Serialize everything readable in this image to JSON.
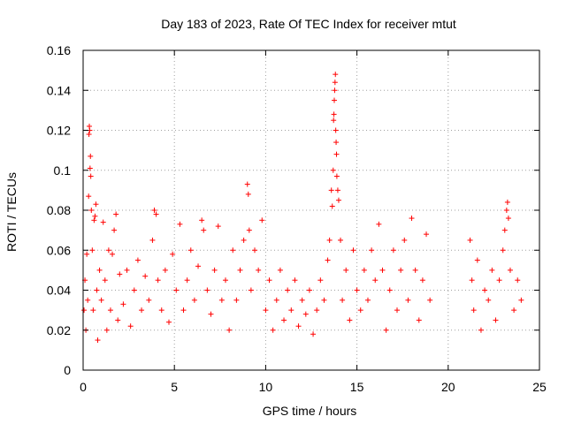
{
  "chart_data": {
    "type": "scatter",
    "title": "Day 183 of 2023, Rate Of TEC Index for receiver mtut",
    "xlabel": "GPS time / hours",
    "ylabel": "ROTI / TECUs",
    "xlim": [
      0,
      25
    ],
    "ylim": [
      0,
      0.16
    ],
    "x_ticks": [
      0,
      5,
      10,
      15,
      20,
      25
    ],
    "x_tick_labels": [
      "0",
      "5",
      "10",
      "15",
      "20",
      "25"
    ],
    "y_ticks": [
      0,
      0.02,
      0.04,
      0.06,
      0.08,
      0.1,
      0.12,
      0.14,
      0.16
    ],
    "y_tick_labels": [
      "0",
      "0.02",
      "0.04",
      "0.06",
      "0.08",
      "0.1",
      "0.12",
      "0.14",
      "0.16"
    ],
    "grid": true,
    "marker": "plus",
    "color": "#ff0000",
    "series": [
      {
        "name": "",
        "points": [
          [
            0.05,
            0.03
          ],
          [
            0.1,
            0.045
          ],
          [
            0.15,
            0.02
          ],
          [
            0.2,
            0.058
          ],
          [
            0.25,
            0.035
          ],
          [
            0.3,
            0.087
          ],
          [
            0.32,
            0.118
          ],
          [
            0.34,
            0.122
          ],
          [
            0.36,
            0.12
          ],
          [
            0.38,
            0.101
          ],
          [
            0.4,
            0.107
          ],
          [
            0.42,
            0.097
          ],
          [
            0.45,
            0.08
          ],
          [
            0.5,
            0.06
          ],
          [
            0.55,
            0.03
          ],
          [
            0.6,
            0.075
          ],
          [
            0.65,
            0.077
          ],
          [
            0.7,
            0.083
          ],
          [
            0.75,
            0.04
          ],
          [
            0.8,
            0.015
          ],
          [
            0.9,
            0.05
          ],
          [
            1.0,
            0.035
          ],
          [
            1.1,
            0.074
          ],
          [
            1.2,
            0.045
          ],
          [
            1.3,
            0.02
          ],
          [
            1.4,
            0.06
          ],
          [
            1.5,
            0.03
          ],
          [
            1.6,
            0.058
          ],
          [
            1.7,
            0.07
          ],
          [
            1.8,
            0.078
          ],
          [
            1.9,
            0.025
          ],
          [
            2.0,
            0.048
          ],
          [
            2.2,
            0.033
          ],
          [
            2.4,
            0.05
          ],
          [
            2.6,
            0.022
          ],
          [
            2.8,
            0.04
          ],
          [
            3.0,
            0.055
          ],
          [
            3.2,
            0.03
          ],
          [
            3.4,
            0.047
          ],
          [
            3.6,
            0.035
          ],
          [
            3.8,
            0.065
          ],
          [
            3.9,
            0.08
          ],
          [
            4.0,
            0.078
          ],
          [
            4.1,
            0.045
          ],
          [
            4.3,
            0.03
          ],
          [
            4.5,
            0.05
          ],
          [
            4.7,
            0.024
          ],
          [
            4.9,
            0.058
          ],
          [
            5.1,
            0.04
          ],
          [
            5.3,
            0.073
          ],
          [
            5.5,
            0.03
          ],
          [
            5.7,
            0.045
          ],
          [
            5.9,
            0.06
          ],
          [
            6.1,
            0.035
          ],
          [
            6.3,
            0.052
          ],
          [
            6.5,
            0.075
          ],
          [
            6.6,
            0.07
          ],
          [
            6.8,
            0.04
          ],
          [
            7.0,
            0.028
          ],
          [
            7.2,
            0.05
          ],
          [
            7.4,
            0.072
          ],
          [
            7.6,
            0.035
          ],
          [
            7.8,
            0.045
          ],
          [
            8.0,
            0.02
          ],
          [
            8.2,
            0.06
          ],
          [
            8.4,
            0.035
          ],
          [
            8.6,
            0.05
          ],
          [
            8.8,
            0.065
          ],
          [
            9.0,
            0.093
          ],
          [
            9.05,
            0.088
          ],
          [
            9.1,
            0.07
          ],
          [
            9.2,
            0.04
          ],
          [
            9.4,
            0.06
          ],
          [
            9.6,
            0.05
          ],
          [
            9.8,
            0.075
          ],
          [
            10.0,
            0.03
          ],
          [
            10.2,
            0.045
          ],
          [
            10.4,
            0.02
          ],
          [
            10.6,
            0.035
          ],
          [
            10.8,
            0.05
          ],
          [
            11.0,
            0.025
          ],
          [
            11.2,
            0.04
          ],
          [
            11.4,
            0.03
          ],
          [
            11.6,
            0.045
          ],
          [
            11.8,
            0.022
          ],
          [
            12.0,
            0.035
          ],
          [
            12.2,
            0.028
          ],
          [
            12.4,
            0.04
          ],
          [
            12.6,
            0.018
          ],
          [
            12.8,
            0.03
          ],
          [
            13.0,
            0.045
          ],
          [
            13.2,
            0.035
          ],
          [
            13.4,
            0.055
          ],
          [
            13.5,
            0.065
          ],
          [
            13.6,
            0.09
          ],
          [
            13.65,
            0.082
          ],
          [
            13.7,
            0.1
          ],
          [
            13.72,
            0.125
          ],
          [
            13.74,
            0.128
          ],
          [
            13.76,
            0.135
          ],
          [
            13.78,
            0.14
          ],
          [
            13.8,
            0.144
          ],
          [
            13.82,
            0.148
          ],
          [
            13.84,
            0.12
          ],
          [
            13.86,
            0.114
          ],
          [
            13.88,
            0.108
          ],
          [
            13.9,
            0.097
          ],
          [
            13.95,
            0.09
          ],
          [
            14.0,
            0.085
          ],
          [
            14.1,
            0.065
          ],
          [
            14.2,
            0.035
          ],
          [
            14.4,
            0.05
          ],
          [
            14.6,
            0.025
          ],
          [
            14.8,
            0.06
          ],
          [
            15.0,
            0.04
          ],
          [
            15.2,
            0.03
          ],
          [
            15.4,
            0.05
          ],
          [
            15.6,
            0.035
          ],
          [
            15.8,
            0.06
          ],
          [
            16.0,
            0.045
          ],
          [
            16.2,
            0.073
          ],
          [
            16.4,
            0.05
          ],
          [
            16.6,
            0.02
          ],
          [
            16.8,
            0.04
          ],
          [
            17.0,
            0.06
          ],
          [
            17.2,
            0.03
          ],
          [
            17.4,
            0.05
          ],
          [
            17.6,
            0.065
          ],
          [
            17.8,
            0.035
          ],
          [
            18.0,
            0.076
          ],
          [
            18.2,
            0.05
          ],
          [
            18.4,
            0.025
          ],
          [
            18.6,
            0.045
          ],
          [
            18.8,
            0.068
          ],
          [
            19.0,
            0.035
          ],
          [
            21.2,
            0.065
          ],
          [
            21.3,
            0.045
          ],
          [
            21.4,
            0.03
          ],
          [
            21.6,
            0.055
          ],
          [
            21.8,
            0.02
          ],
          [
            22.0,
            0.04
          ],
          [
            22.2,
            0.035
          ],
          [
            22.4,
            0.05
          ],
          [
            22.6,
            0.025
          ],
          [
            22.8,
            0.045
          ],
          [
            23.0,
            0.06
          ],
          [
            23.1,
            0.07
          ],
          [
            23.2,
            0.08
          ],
          [
            23.25,
            0.084
          ],
          [
            23.3,
            0.076
          ],
          [
            23.4,
            0.05
          ],
          [
            23.6,
            0.03
          ],
          [
            23.8,
            0.045
          ],
          [
            24.0,
            0.035
          ]
        ]
      }
    ]
  }
}
